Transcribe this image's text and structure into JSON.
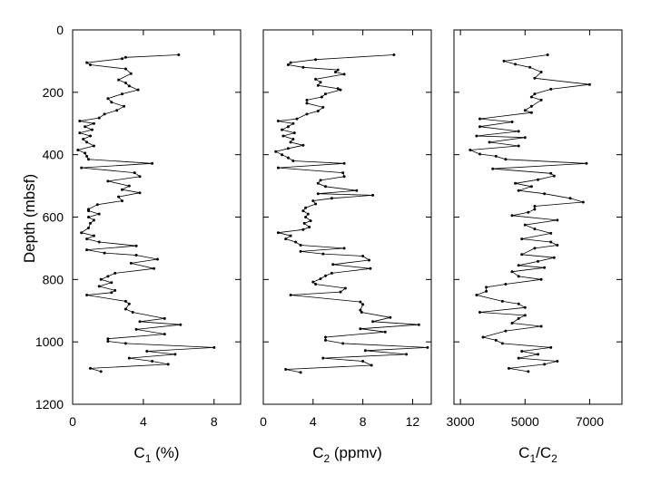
{
  "chart_data": {
    "type": "line",
    "y_axis": {
      "label": "Depth (mbsf)",
      "range": [
        0,
        1200
      ],
      "inverted": true,
      "ticks": [
        0,
        200,
        400,
        600,
        800,
        1000,
        1200
      ]
    },
    "grid": false,
    "panels": [
      {
        "xlabel_main": "C",
        "xlabel_sub": "1",
        "xlabel_rest": " (%)",
        "xlim": [
          0,
          9.5
        ],
        "x_ticks": [
          0,
          4,
          8
        ],
        "points": [
          [
            6.0,
            80
          ],
          [
            3.0,
            88
          ],
          [
            2.8,
            92
          ],
          [
            0.8,
            105
          ],
          [
            1.0,
            112
          ],
          [
            3.0,
            125
          ],
          [
            3.3,
            140
          ],
          [
            2.6,
            160
          ],
          [
            3.0,
            170
          ],
          [
            3.2,
            180
          ],
          [
            3.7,
            192
          ],
          [
            2.8,
            205
          ],
          [
            2.0,
            220
          ],
          [
            2.2,
            232
          ],
          [
            2.9,
            245
          ],
          [
            2.5,
            258
          ],
          [
            1.8,
            270
          ],
          [
            1.5,
            282
          ],
          [
            0.4,
            292
          ],
          [
            1.2,
            300
          ],
          [
            0.7,
            310
          ],
          [
            1.1,
            320
          ],
          [
            0.4,
            330
          ],
          [
            1.0,
            340
          ],
          [
            0.6,
            350
          ],
          [
            0.8,
            360
          ],
          [
            1.2,
            372
          ],
          [
            0.3,
            385
          ],
          [
            0.7,
            395
          ],
          [
            0.8,
            405
          ],
          [
            0.9,
            415
          ],
          [
            4.5,
            428
          ],
          [
            0.5,
            442
          ],
          [
            3.5,
            458
          ],
          [
            3.8,
            470
          ],
          [
            2.0,
            485
          ],
          [
            3.2,
            500
          ],
          [
            2.8,
            512
          ],
          [
            3.8,
            522
          ],
          [
            2.6,
            535
          ],
          [
            2.8,
            548
          ],
          [
            1.4,
            560
          ],
          [
            0.9,
            575
          ],
          [
            0.9,
            580
          ],
          [
            1.5,
            590
          ],
          [
            0.9,
            600
          ],
          [
            1.2,
            610
          ],
          [
            1.0,
            620
          ],
          [
            0.9,
            635
          ],
          [
            0.5,
            650
          ],
          [
            1.2,
            660
          ],
          [
            0.8,
            670
          ],
          [
            1.5,
            680
          ],
          [
            3.6,
            692
          ],
          [
            0.8,
            705
          ],
          [
            1.8,
            715
          ],
          [
            3.6,
            722
          ],
          [
            4.8,
            735
          ],
          [
            3.3,
            748
          ],
          [
            4.6,
            765
          ],
          [
            2.4,
            780
          ],
          [
            2.0,
            790
          ],
          [
            1.6,
            800
          ],
          [
            2.2,
            810
          ],
          [
            1.5,
            822
          ],
          [
            2.4,
            835
          ],
          [
            2.2,
            842
          ],
          [
            0.8,
            850
          ],
          [
            3.0,
            870
          ],
          [
            3.2,
            878
          ],
          [
            3.0,
            895
          ],
          [
            3.4,
            905
          ],
          [
            5.2,
            925
          ],
          [
            3.8,
            935
          ],
          [
            6.1,
            945
          ],
          [
            3.6,
            960
          ],
          [
            5.2,
            975
          ],
          [
            2.0,
            990
          ],
          [
            2.0,
            998
          ],
          [
            3.0,
            1005
          ],
          [
            8.0,
            1018
          ],
          [
            4.2,
            1030
          ],
          [
            5.8,
            1040
          ],
          [
            3.2,
            1052
          ],
          [
            4.5,
            1062
          ],
          [
            5.4,
            1072
          ],
          [
            1.0,
            1085
          ],
          [
            1.6,
            1095
          ]
        ]
      },
      {
        "xlabel_main": "C",
        "xlabel_sub": "2",
        "xlabel_rest": " (ppmv)",
        "xlim": [
          0,
          13.5
        ],
        "x_ticks": [
          0,
          4,
          8,
          12
        ],
        "points": [
          [
            10.5,
            80
          ],
          [
            4.2,
            95
          ],
          [
            2.2,
            105
          ],
          [
            2.0,
            112
          ],
          [
            3.2,
            120
          ],
          [
            6.0,
            128
          ],
          [
            5.8,
            135
          ],
          [
            6.5,
            142
          ],
          [
            4.2,
            158
          ],
          [
            4.6,
            168
          ],
          [
            4.4,
            178
          ],
          [
            6.0,
            188
          ],
          [
            6.2,
            192
          ],
          [
            5.0,
            205
          ],
          [
            4.7,
            215
          ],
          [
            3.5,
            225
          ],
          [
            3.5,
            235
          ],
          [
            4.8,
            248
          ],
          [
            4.4,
            260
          ],
          [
            3.5,
            270
          ],
          [
            2.7,
            285
          ],
          [
            1.2,
            292
          ],
          [
            2.4,
            300
          ],
          [
            2.0,
            310
          ],
          [
            1.5,
            320
          ],
          [
            2.5,
            330
          ],
          [
            1.6,
            340
          ],
          [
            2.4,
            350
          ],
          [
            2.2,
            360
          ],
          [
            3.2,
            370
          ],
          [
            2.0,
            380
          ],
          [
            1.0,
            390
          ],
          [
            1.5,
            400
          ],
          [
            2.0,
            410
          ],
          [
            2.4,
            420
          ],
          [
            6.5,
            428
          ],
          [
            1.2,
            442
          ],
          [
            6.4,
            458
          ],
          [
            6.5,
            470
          ],
          [
            4.6,
            482
          ],
          [
            4.4,
            492
          ],
          [
            5.0,
            502
          ],
          [
            7.5,
            515
          ],
          [
            4.4,
            525
          ],
          [
            8.8,
            530
          ],
          [
            5.5,
            540
          ],
          [
            4.0,
            548
          ],
          [
            4.2,
            558
          ],
          [
            3.4,
            570
          ],
          [
            3.2,
            580
          ],
          [
            3.6,
            590
          ],
          [
            3.4,
            600
          ],
          [
            3.8,
            612
          ],
          [
            3.3,
            620
          ],
          [
            3.7,
            632
          ],
          [
            3.2,
            640
          ],
          [
            1.2,
            650
          ],
          [
            2.2,
            660
          ],
          [
            1.8,
            670
          ],
          [
            2.6,
            680
          ],
          [
            3.0,
            690
          ],
          [
            6.5,
            700
          ],
          [
            3.0,
            710
          ],
          [
            4.8,
            718
          ],
          [
            8.0,
            725
          ],
          [
            8.5,
            738
          ],
          [
            5.6,
            752
          ],
          [
            8.6,
            765
          ],
          [
            5.5,
            780
          ],
          [
            5.0,
            788
          ],
          [
            4.6,
            798
          ],
          [
            4.0,
            808
          ],
          [
            4.2,
            815
          ],
          [
            6.6,
            828
          ],
          [
            6.2,
            840
          ],
          [
            2.2,
            850
          ],
          [
            7.8,
            872
          ],
          [
            8.0,
            880
          ],
          [
            7.8,
            898
          ],
          [
            7.9,
            905
          ],
          [
            10.2,
            922
          ],
          [
            8.8,
            935
          ],
          [
            12.5,
            945
          ],
          [
            7.8,
            958
          ],
          [
            9.8,
            968
          ],
          [
            5.0,
            985
          ],
          [
            5.0,
            995
          ],
          [
            6.4,
            1005
          ],
          [
            13.2,
            1018
          ],
          [
            8.2,
            1028
          ],
          [
            11.5,
            1040
          ],
          [
            4.8,
            1052
          ],
          [
            8.0,
            1062
          ],
          [
            8.7,
            1075
          ],
          [
            1.8,
            1088
          ],
          [
            3.0,
            1098
          ]
        ]
      },
      {
        "xlabel_main": "C",
        "xlabel_sub": "1",
        "xlabel_rest": "/C",
        "xlabel_sub2": "2",
        "xlim": [
          2800,
          8000
        ],
        "x_ticks": [
          3000,
          5000,
          7000
        ],
        "points": [
          [
            5700,
            80
          ],
          [
            4350,
            100
          ],
          [
            4700,
            110
          ],
          [
            5150,
            120
          ],
          [
            5500,
            135
          ],
          [
            5300,
            155
          ],
          [
            7000,
            175
          ],
          [
            5800,
            190
          ],
          [
            5300,
            205
          ],
          [
            5200,
            215
          ],
          [
            5500,
            225
          ],
          [
            5200,
            245
          ],
          [
            5000,
            258
          ],
          [
            5200,
            265
          ],
          [
            3600,
            285
          ],
          [
            4600,
            295
          ],
          [
            3600,
            310
          ],
          [
            4800,
            325
          ],
          [
            3500,
            340
          ],
          [
            5000,
            345
          ],
          [
            3900,
            360
          ],
          [
            4800,
            372
          ],
          [
            3300,
            385
          ],
          [
            3600,
            398
          ],
          [
            4100,
            405
          ],
          [
            4400,
            415
          ],
          [
            6900,
            428
          ],
          [
            4000,
            445
          ],
          [
            5800,
            460
          ],
          [
            5900,
            468
          ],
          [
            5400,
            480
          ],
          [
            4700,
            492
          ],
          [
            5200,
            502
          ],
          [
            4800,
            515
          ],
          [
            5600,
            525
          ],
          [
            6400,
            540
          ],
          [
            6800,
            552
          ],
          [
            5300,
            565
          ],
          [
            5300,
            575
          ],
          [
            5100,
            585
          ],
          [
            4600,
            595
          ],
          [
            6000,
            610
          ],
          [
            5000,
            625
          ],
          [
            5300,
            638
          ],
          [
            5800,
            652
          ],
          [
            4900,
            670
          ],
          [
            5800,
            680
          ],
          [
            6000,
            690
          ],
          [
            5300,
            700
          ],
          [
            4900,
            720
          ],
          [
            5900,
            730
          ],
          [
            5400,
            742
          ],
          [
            4800,
            755
          ],
          [
            5600,
            762
          ],
          [
            4600,
            775
          ],
          [
            4800,
            790
          ],
          [
            5500,
            800
          ],
          [
            4400,
            815
          ],
          [
            3800,
            825
          ],
          [
            3800,
            838
          ],
          [
            3500,
            850
          ],
          [
            4300,
            870
          ],
          [
            4800,
            878
          ],
          [
            5000,
            890
          ],
          [
            3600,
            905
          ],
          [
            5000,
            915
          ],
          [
            4800,
            925
          ],
          [
            4600,
            940
          ],
          [
            5500,
            950
          ],
          [
            4400,
            965
          ],
          [
            3700,
            985
          ],
          [
            4100,
            995
          ],
          [
            4300,
            1005
          ],
          [
            5800,
            1018
          ],
          [
            4900,
            1030
          ],
          [
            5400,
            1040
          ],
          [
            4800,
            1052
          ],
          [
            6000,
            1062
          ],
          [
            5600,
            1072
          ],
          [
            4500,
            1085
          ],
          [
            5100,
            1095
          ]
        ]
      }
    ]
  }
}
